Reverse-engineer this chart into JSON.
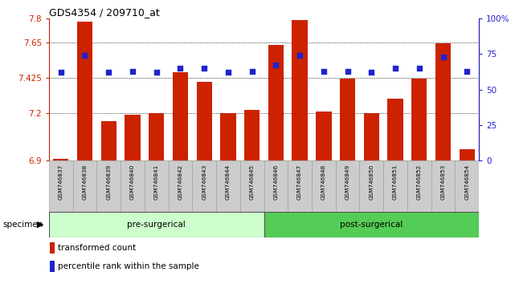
{
  "title": "GDS4354 / 209710_at",
  "categories": [
    "GSM746837",
    "GSM746838",
    "GSM746839",
    "GSM746840",
    "GSM746841",
    "GSM746842",
    "GSM746843",
    "GSM746844",
    "GSM746845",
    "GSM746846",
    "GSM746847",
    "GSM746848",
    "GSM746849",
    "GSM746850",
    "GSM746851",
    "GSM746852",
    "GSM746853",
    "GSM746854"
  ],
  "bar_values": [
    6.91,
    7.78,
    7.15,
    7.19,
    7.2,
    7.46,
    7.4,
    7.2,
    7.22,
    7.63,
    7.79,
    7.21,
    7.42,
    7.2,
    7.29,
    7.42,
    7.64,
    6.97
  ],
  "dot_values": [
    62,
    74,
    62,
    63,
    62,
    65,
    65,
    62,
    63,
    67,
    74,
    63,
    63,
    62,
    65,
    65,
    73,
    63
  ],
  "ylim_left": [
    6.9,
    7.8
  ],
  "ylim_right": [
    0,
    100
  ],
  "yticks_left": [
    6.9,
    7.2,
    7.425,
    7.65,
    7.8
  ],
  "yticks_right": [
    0,
    25,
    50,
    75,
    100
  ],
  "ytick_labels_left": [
    "6.9",
    "7.2",
    "7.425",
    "7.65",
    "7.8"
  ],
  "ytick_labels_right": [
    "0",
    "25",
    "50",
    "75",
    "100%"
  ],
  "bar_color": "#cc2200",
  "dot_color": "#2222cc",
  "bg_color": "#ffffff",
  "pre_label": "pre-surgerical",
  "post_label": "post-surgerical",
  "pre_color": "#ccffcc",
  "post_color": "#55cc55",
  "specimen_label": "specimen",
  "legend_bar_label": "transformed count",
  "legend_dot_label": "percentile rank within the sample",
  "xticklabel_bg": "#cccccc",
  "n_pre": 9,
  "n_post": 9
}
